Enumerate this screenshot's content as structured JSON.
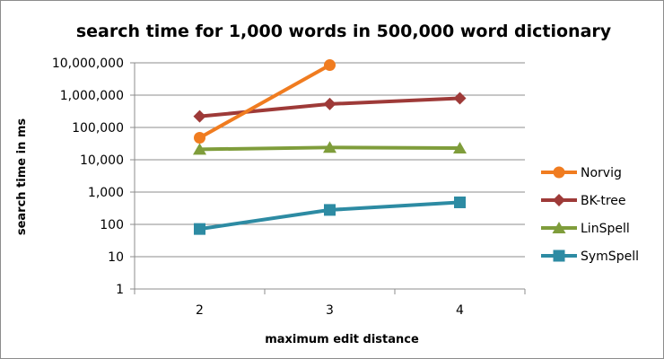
{
  "chart_data": {
    "type": "line",
    "title": "search time for 1,000 words in 500,000 word dictionary",
    "xlabel": "maximum edit distance",
    "ylabel": "search time in ms",
    "y_scale": "log",
    "ylim": [
      1,
      10000000
    ],
    "categories": [
      "2",
      "3",
      "4"
    ],
    "y_ticks": [
      {
        "value": 1,
        "label": "1"
      },
      {
        "value": 10,
        "label": "10"
      },
      {
        "value": 100,
        "label": "100"
      },
      {
        "value": 1000,
        "label": "1,000"
      },
      {
        "value": 10000,
        "label": "10,000"
      },
      {
        "value": 100000,
        "label": "100,000"
      },
      {
        "value": 1000000,
        "label": "1,000,000"
      },
      {
        "value": 10000000,
        "label": "10,000,000"
      }
    ],
    "grid": "horizontal",
    "legend_position": "right",
    "series": [
      {
        "name": "Norvig",
        "color": "#f07c20",
        "marker": "circle",
        "values": [
          48000,
          8500000,
          null
        ]
      },
      {
        "name": "BK-tree",
        "color": "#9e3a38",
        "marker": "diamond",
        "values": [
          220000,
          530000,
          800000
        ]
      },
      {
        "name": "LinSpell",
        "color": "#7f9d3b",
        "marker": "triangle",
        "values": [
          21000,
          24000,
          23000
        ]
      },
      {
        "name": "SymSpell",
        "color": "#2d8ba3",
        "marker": "square",
        "values": [
          72,
          280,
          480
        ]
      }
    ]
  }
}
